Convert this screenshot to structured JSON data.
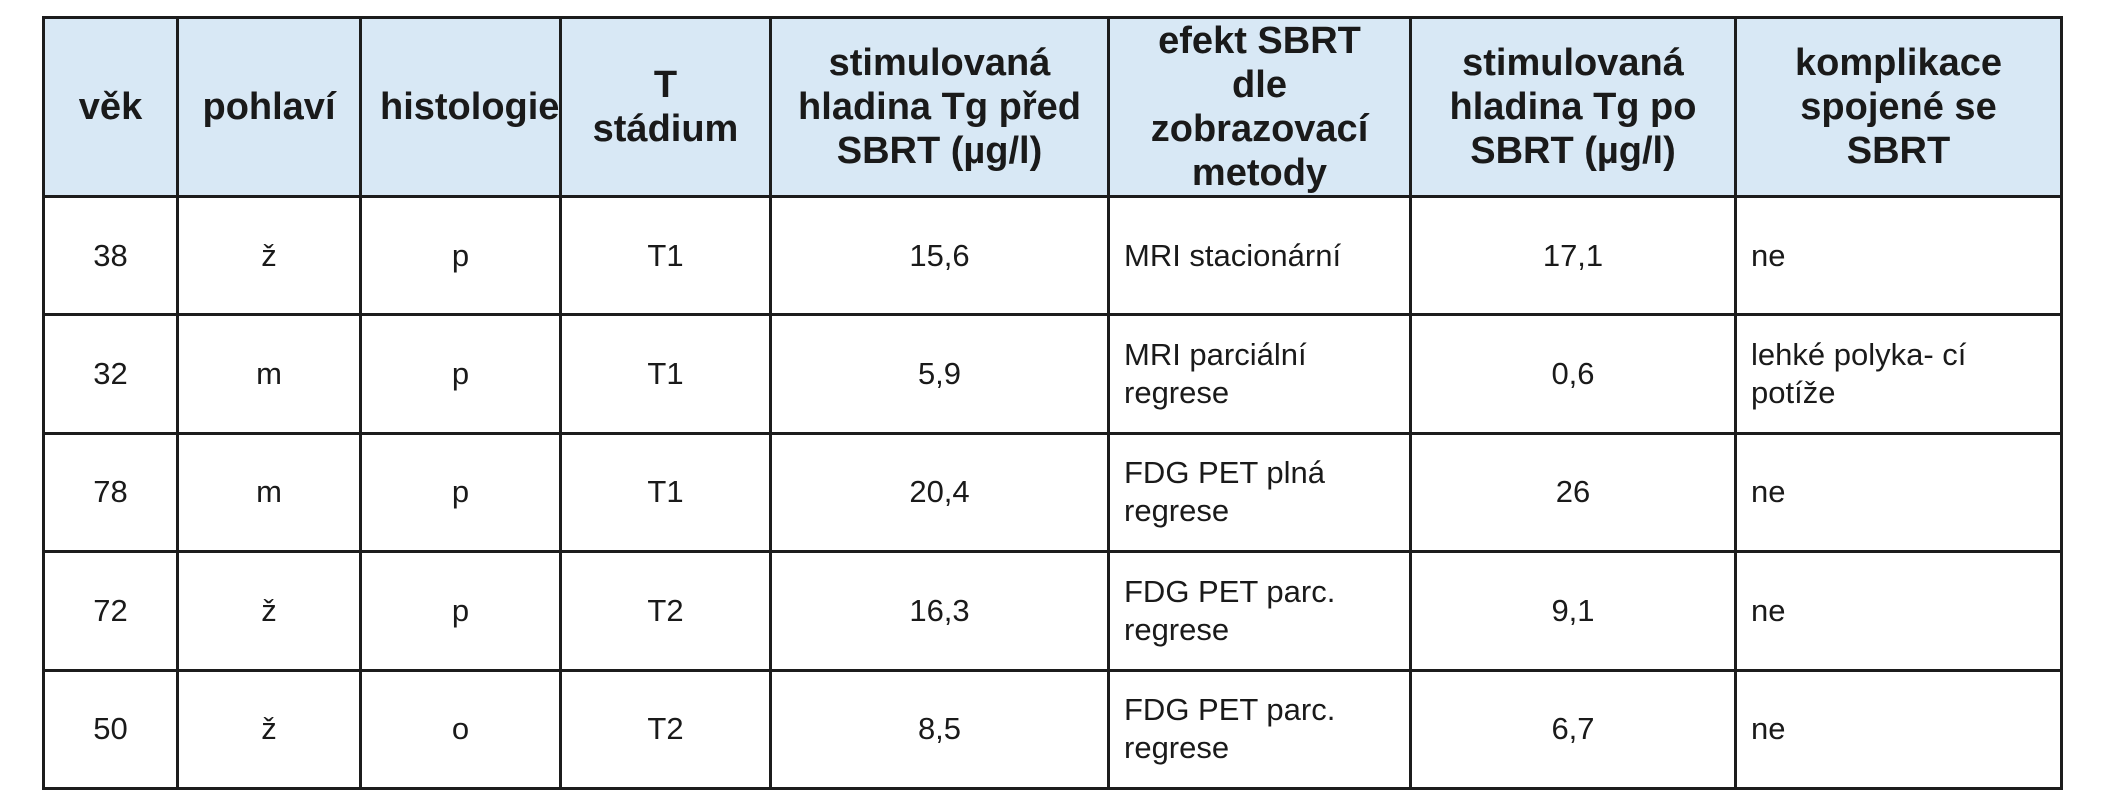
{
  "table": {
    "headers": [
      "věk",
      "pohlaví",
      "histologie",
      "T stádium",
      "stimulovaná hladina Tg před SBRT (µg/l)",
      "efekt SBRT dle zobrazovací metody",
      "stimulovaná hladina Tg po SBRT (µg/l)",
      "komplikace spojené se SBRT"
    ],
    "rows": [
      [
        "38",
        "ž",
        "p",
        "T1",
        "15,6",
        "MRI stacionární",
        "17,1",
        "ne"
      ],
      [
        "32",
        "m",
        "p",
        "T1",
        "5,9",
        "MRI parciální regrese",
        "0,6",
        "lehké polyka- cí potíže"
      ],
      [
        "78",
        "m",
        "p",
        "T1",
        "20,4",
        "FDG PET plná regrese",
        "26",
        "ne"
      ],
      [
        "72",
        "ž",
        "p",
        "T2",
        "16,3",
        "FDG PET parc. regrese",
        "9,1",
        "ne"
      ],
      [
        "50",
        "ž",
        "o",
        "T2",
        "8,5",
        "FDG PET parc. regrese",
        "6,7",
        "ne"
      ]
    ]
  }
}
